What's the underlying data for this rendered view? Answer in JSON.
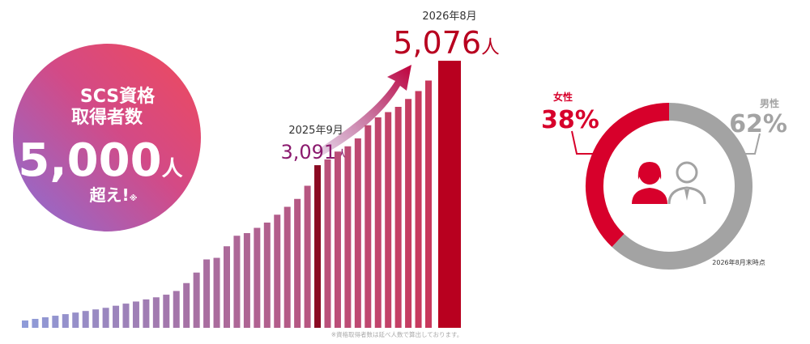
{
  "badge": {
    "line1": "SCS資格",
    "line2": "取得者数",
    "number": "5,000",
    "unit": "人",
    "suffix": "超え!",
    "mark": "※"
  },
  "chart_data": [
    {
      "type": "bar",
      "categories": [
        null,
        null,
        null,
        null,
        null,
        null,
        null,
        null,
        null,
        null,
        null,
        null,
        null,
        null,
        null,
        null,
        null,
        null,
        null,
        null,
        null,
        null,
        null,
        null,
        null,
        null,
        null,
        null,
        null,
        "2025年9月",
        null,
        null,
        null,
        null,
        null,
        null,
        null,
        null,
        null,
        null,
        null,
        "2026年8月"
      ],
      "values": [
        140,
        170,
        200,
        230,
        260,
        290,
        320,
        350,
        380,
        420,
        460,
        500,
        540,
        580,
        630,
        700,
        850,
        1050,
        1300,
        1330,
        1550,
        1750,
        1800,
        1900,
        2000,
        2150,
        2300,
        2450,
        2700,
        3091,
        3200,
        3350,
        3450,
        3600,
        3850,
        4000,
        4100,
        4200,
        4350,
        4500,
        4700,
        5076
      ],
      "value_labels": [
        null,
        null,
        null,
        null,
        null,
        null,
        null,
        null,
        null,
        null,
        null,
        null,
        null,
        null,
        null,
        null,
        null,
        null,
        null,
        null,
        null,
        null,
        null,
        null,
        null,
        null,
        null,
        null,
        null,
        "3,091",
        null,
        null,
        null,
        null,
        null,
        null,
        null,
        null,
        null,
        null,
        null,
        "5,076"
      ],
      "unit": "人",
      "color_start": "#8f9bd8",
      "color_end": "#c8385c",
      "highlight_color": "#8a0a22",
      "last_color": "#b8001f",
      "footnote": "※資格取得者数は延べ人数で算出しております。"
    },
    {
      "type": "donut",
      "categories": [
        "女性",
        "男性"
      ],
      "values": [
        38,
        62
      ],
      "value_labels": [
        "38%",
        "62%"
      ],
      "colors": [
        "#d7002b",
        "#a3a3a3"
      ],
      "note": "2026年8月末時点"
    }
  ]
}
